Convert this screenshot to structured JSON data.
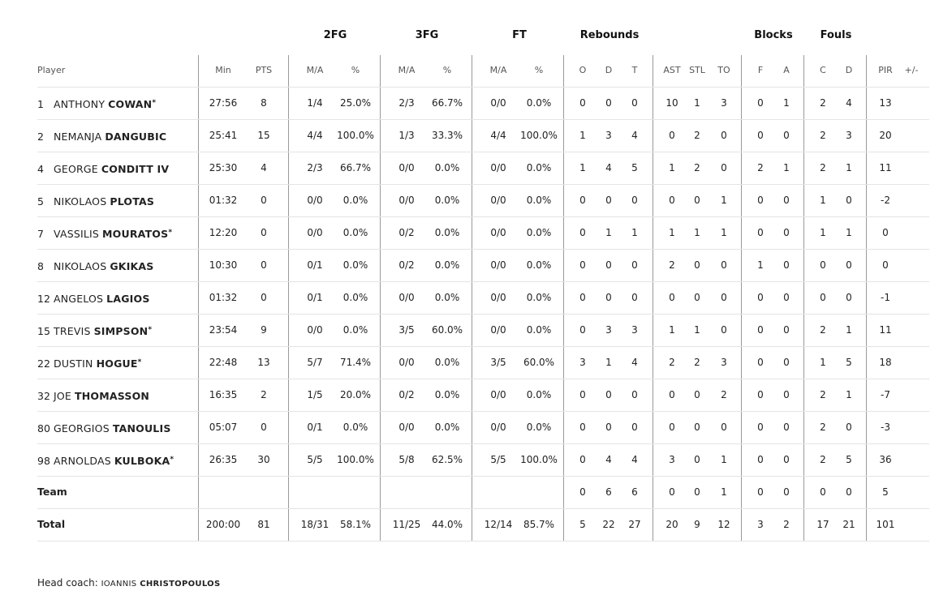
{
  "groups": {
    "fg2": "2FG",
    "fg3": "3FG",
    "ft": "FT",
    "rebounds": "Rebounds",
    "blocks": "Blocks",
    "fouls": "Fouls"
  },
  "columns": {
    "player": "Player",
    "min": "Min",
    "pts": "PTS",
    "fg2_ma": "M/A",
    "fg2_pct": "%",
    "fg3_ma": "M/A",
    "fg3_pct": "%",
    "ft_ma": "M/A",
    "ft_pct": "%",
    "reb_o": "O",
    "reb_d": "D",
    "reb_t": "T",
    "ast": "AST",
    "stl": "STL",
    "to": "TO",
    "blk_f": "F",
    "blk_a": "A",
    "foul_c": "C",
    "foul_d": "D",
    "pir": "PIR",
    "pm": "+/-"
  },
  "players": [
    {
      "num": "1",
      "first": "ANTHONY",
      "last": "COWAN",
      "star": "*",
      "min": "27:56",
      "pts": "8",
      "fg2_ma": "1/4",
      "fg2_pct": "25.0%",
      "fg3_ma": "2/3",
      "fg3_pct": "66.7%",
      "ft_ma": "0/0",
      "ft_pct": "0.0%",
      "reb_o": "0",
      "reb_d": "0",
      "reb_t": "0",
      "ast": "10",
      "stl": "1",
      "to": "3",
      "blk_f": "0",
      "blk_a": "1",
      "foul_c": "2",
      "foul_d": "4",
      "pir": "13",
      "pm": ""
    },
    {
      "num": "2",
      "first": "NEMANJA",
      "last": "DANGUBIC",
      "star": "",
      "min": "25:41",
      "pts": "15",
      "fg2_ma": "4/4",
      "fg2_pct": "100.0%",
      "fg3_ma": "1/3",
      "fg3_pct": "33.3%",
      "ft_ma": "4/4",
      "ft_pct": "100.0%",
      "reb_o": "1",
      "reb_d": "3",
      "reb_t": "4",
      "ast": "0",
      "stl": "2",
      "to": "0",
      "blk_f": "0",
      "blk_a": "0",
      "foul_c": "2",
      "foul_d": "3",
      "pir": "20",
      "pm": ""
    },
    {
      "num": "4",
      "first": "GEORGE",
      "last": "CONDITT IV",
      "star": "",
      "min": "25:30",
      "pts": "4",
      "fg2_ma": "2/3",
      "fg2_pct": "66.7%",
      "fg3_ma": "0/0",
      "fg3_pct": "0.0%",
      "ft_ma": "0/0",
      "ft_pct": "0.0%",
      "reb_o": "1",
      "reb_d": "4",
      "reb_t": "5",
      "ast": "1",
      "stl": "2",
      "to": "0",
      "blk_f": "2",
      "blk_a": "1",
      "foul_c": "2",
      "foul_d": "1",
      "pir": "11",
      "pm": ""
    },
    {
      "num": "5",
      "first": "NIKOLAOS",
      "last": "PLOTAS",
      "star": "",
      "min": "01:32",
      "pts": "0",
      "fg2_ma": "0/0",
      "fg2_pct": "0.0%",
      "fg3_ma": "0/0",
      "fg3_pct": "0.0%",
      "ft_ma": "0/0",
      "ft_pct": "0.0%",
      "reb_o": "0",
      "reb_d": "0",
      "reb_t": "0",
      "ast": "0",
      "stl": "0",
      "to": "1",
      "blk_f": "0",
      "blk_a": "0",
      "foul_c": "1",
      "foul_d": "0",
      "pir": "-2",
      "pm": ""
    },
    {
      "num": "7",
      "first": "VASSILIS",
      "last": "MOURATOS",
      "star": "*",
      "min": "12:20",
      "pts": "0",
      "fg2_ma": "0/0",
      "fg2_pct": "0.0%",
      "fg3_ma": "0/2",
      "fg3_pct": "0.0%",
      "ft_ma": "0/0",
      "ft_pct": "0.0%",
      "reb_o": "0",
      "reb_d": "1",
      "reb_t": "1",
      "ast": "1",
      "stl": "1",
      "to": "1",
      "blk_f": "0",
      "blk_a": "0",
      "foul_c": "1",
      "foul_d": "1",
      "pir": "0",
      "pm": ""
    },
    {
      "num": "8",
      "first": "NIKOLAOS",
      "last": "GKIKAS",
      "star": "",
      "min": "10:30",
      "pts": "0",
      "fg2_ma": "0/1",
      "fg2_pct": "0.0%",
      "fg3_ma": "0/2",
      "fg3_pct": "0.0%",
      "ft_ma": "0/0",
      "ft_pct": "0.0%",
      "reb_o": "0",
      "reb_d": "0",
      "reb_t": "0",
      "ast": "2",
      "stl": "0",
      "to": "0",
      "blk_f": "1",
      "blk_a": "0",
      "foul_c": "0",
      "foul_d": "0",
      "pir": "0",
      "pm": ""
    },
    {
      "num": "12",
      "first": "ANGELOS",
      "last": "LAGIOS",
      "star": "",
      "min": "01:32",
      "pts": "0",
      "fg2_ma": "0/1",
      "fg2_pct": "0.0%",
      "fg3_ma": "0/0",
      "fg3_pct": "0.0%",
      "ft_ma": "0/0",
      "ft_pct": "0.0%",
      "reb_o": "0",
      "reb_d": "0",
      "reb_t": "0",
      "ast": "0",
      "stl": "0",
      "to": "0",
      "blk_f": "0",
      "blk_a": "0",
      "foul_c": "0",
      "foul_d": "0",
      "pir": "-1",
      "pm": ""
    },
    {
      "num": "15",
      "first": "TREVIS",
      "last": "SIMPSON",
      "star": "*",
      "min": "23:54",
      "pts": "9",
      "fg2_ma": "0/0",
      "fg2_pct": "0.0%",
      "fg3_ma": "3/5",
      "fg3_pct": "60.0%",
      "ft_ma": "0/0",
      "ft_pct": "0.0%",
      "reb_o": "0",
      "reb_d": "3",
      "reb_t": "3",
      "ast": "1",
      "stl": "1",
      "to": "0",
      "blk_f": "0",
      "blk_a": "0",
      "foul_c": "2",
      "foul_d": "1",
      "pir": "11",
      "pm": ""
    },
    {
      "num": "22",
      "first": "DUSTIN",
      "last": "HOGUE",
      "star": "*",
      "min": "22:48",
      "pts": "13",
      "fg2_ma": "5/7",
      "fg2_pct": "71.4%",
      "fg3_ma": "0/0",
      "fg3_pct": "0.0%",
      "ft_ma": "3/5",
      "ft_pct": "60.0%",
      "reb_o": "3",
      "reb_d": "1",
      "reb_t": "4",
      "ast": "2",
      "stl": "2",
      "to": "3",
      "blk_f": "0",
      "blk_a": "0",
      "foul_c": "1",
      "foul_d": "5",
      "pir": "18",
      "pm": ""
    },
    {
      "num": "32",
      "first": "JOE",
      "last": "THOMASSON",
      "star": "",
      "min": "16:35",
      "pts": "2",
      "fg2_ma": "1/5",
      "fg2_pct": "20.0%",
      "fg3_ma": "0/2",
      "fg3_pct": "0.0%",
      "ft_ma": "0/0",
      "ft_pct": "0.0%",
      "reb_o": "0",
      "reb_d": "0",
      "reb_t": "0",
      "ast": "0",
      "stl": "0",
      "to": "2",
      "blk_f": "0",
      "blk_a": "0",
      "foul_c": "2",
      "foul_d": "1",
      "pir": "-7",
      "pm": ""
    },
    {
      "num": "80",
      "first": "GEORGIOS",
      "last": "TANOULIS",
      "star": "",
      "min": "05:07",
      "pts": "0",
      "fg2_ma": "0/1",
      "fg2_pct": "0.0%",
      "fg3_ma": "0/0",
      "fg3_pct": "0.0%",
      "ft_ma": "0/0",
      "ft_pct": "0.0%",
      "reb_o": "0",
      "reb_d": "0",
      "reb_t": "0",
      "ast": "0",
      "stl": "0",
      "to": "0",
      "blk_f": "0",
      "blk_a": "0",
      "foul_c": "2",
      "foul_d": "0",
      "pir": "-3",
      "pm": ""
    },
    {
      "num": "98",
      "first": "ARNOLDAS",
      "last": "KULBOKA",
      "star": "*",
      "min": "26:35",
      "pts": "30",
      "fg2_ma": "5/5",
      "fg2_pct": "100.0%",
      "fg3_ma": "5/8",
      "fg3_pct": "62.5%",
      "ft_ma": "5/5",
      "ft_pct": "100.0%",
      "reb_o": "0",
      "reb_d": "4",
      "reb_t": "4",
      "ast": "3",
      "stl": "0",
      "to": "1",
      "blk_f": "0",
      "blk_a": "0",
      "foul_c": "2",
      "foul_d": "5",
      "pir": "36",
      "pm": ""
    }
  ],
  "team": {
    "label": "Team",
    "min": "",
    "pts": "",
    "fg2_ma": "",
    "fg2_pct": "",
    "fg3_ma": "",
    "fg3_pct": "",
    "ft_ma": "",
    "ft_pct": "",
    "reb_o": "0",
    "reb_d": "6",
    "reb_t": "6",
    "ast": "0",
    "stl": "0",
    "to": "1",
    "blk_f": "0",
    "blk_a": "0",
    "foul_c": "0",
    "foul_d": "0",
    "pir": "5",
    "pm": ""
  },
  "total": {
    "label": "Total",
    "min": "200:00",
    "pts": "81",
    "fg2_ma": "18/31",
    "fg2_pct": "58.1%",
    "fg3_ma": "11/25",
    "fg3_pct": "44.0%",
    "ft_ma": "12/14",
    "ft_pct": "85.7%",
    "reb_o": "5",
    "reb_d": "22",
    "reb_t": "27",
    "ast": "20",
    "stl": "9",
    "to": "12",
    "blk_f": "3",
    "blk_a": "2",
    "foul_c": "17",
    "foul_d": "21",
    "pir": "101",
    "pm": ""
  },
  "coach": {
    "label": "Head coach:",
    "first": "IOANNIS",
    "last": "CHRISTOPOULOS"
  }
}
